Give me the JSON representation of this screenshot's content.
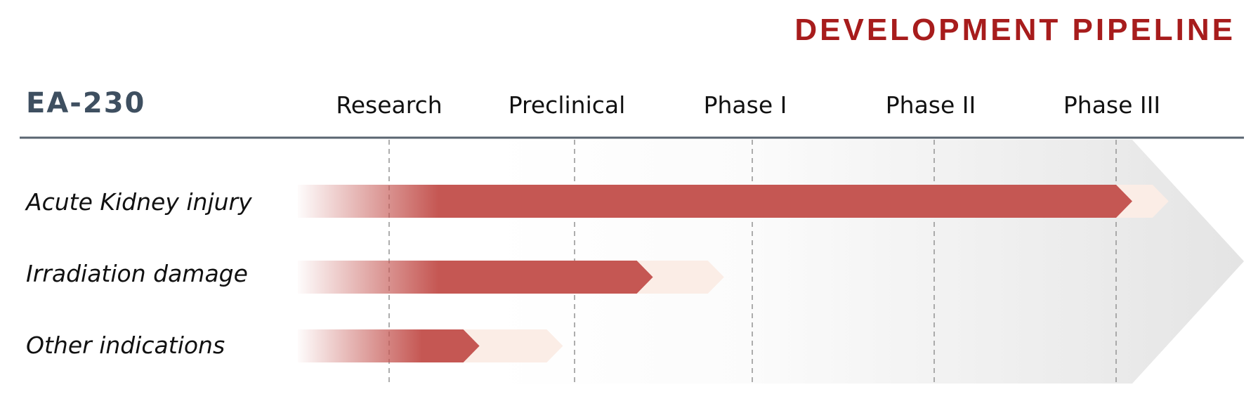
{
  "title": "DEVELOPMENT PIPELINE",
  "product": "EA-230",
  "stages": [
    "Research",
    "Preclinical",
    "Phase I",
    "Phase II",
    "Phase III"
  ],
  "indications": [
    {
      "name": "Acute Kidney injury",
      "progress_stage": 5.0,
      "target_stage": 5.2
    },
    {
      "name": "Irradiation damage",
      "progress_stage": 2.35,
      "target_stage": 2.75
    },
    {
      "name": "Other indications",
      "progress_stage": 1.4,
      "target_stage": 1.85
    }
  ],
  "colors": {
    "title": "#a71c1c",
    "product": "#3e4f60",
    "bar_fill": "#c55753",
    "bar_target": "#fbede6",
    "header_rule": "#5a6570",
    "dashed_lines": "#999999",
    "background_arrow": "#e6e6e6"
  }
}
